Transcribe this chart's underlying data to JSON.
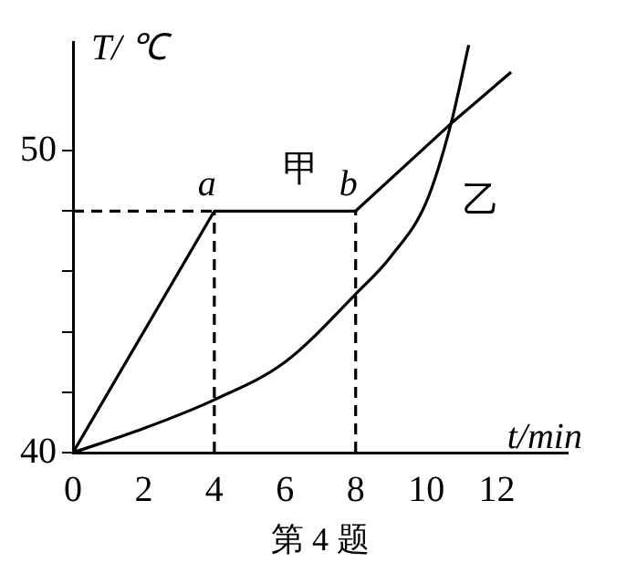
{
  "chart_data": {
    "type": "line",
    "xlabel": "t/min",
    "ylabel": "T/ ℃",
    "xlim": [
      0,
      14
    ],
    "ylim": [
      40,
      53.6
    ],
    "xticks": [
      0,
      2,
      4,
      6,
      8,
      10,
      12
    ],
    "yticks": [
      40,
      {
        "value": 42,
        "label": null
      },
      {
        "value": 44,
        "label": null
      },
      {
        "value": 46,
        "label": null
      },
      {
        "value": 48,
        "label": null
      },
      50
    ],
    "series": [
      {
        "name": "甲",
        "color": "#000000",
        "x": [
          0,
          4,
          8,
          10.7,
          12.4
        ],
        "values": [
          40,
          48,
          48,
          50.9,
          52.6
        ]
      },
      {
        "name": "乙",
        "color": "#000000",
        "x": [
          0,
          2,
          4,
          6,
          8,
          9,
          10,
          10.7,
          11.2
        ],
        "values": [
          40,
          40.8,
          41.75,
          43,
          45.25,
          46.5,
          48.3,
          50.9,
          53.5
        ]
      },
      {
        "color": "#000000",
        "line_style": "dashed",
        "x": [
          0,
          4
        ],
        "values": [
          48,
          48
        ]
      },
      {
        "color": "#000000",
        "line_style": "dashed",
        "x": [
          4,
          4
        ],
        "values": [
          40,
          48
        ]
      },
      {
        "color": "#000000",
        "line_style": "dashed",
        "x": [
          8,
          8
        ],
        "values": [
          40,
          48
        ]
      }
    ],
    "annotations": [
      {
        "text": "a",
        "x": 4,
        "y": 48
      },
      {
        "text": "b",
        "x": 8,
        "y": 48
      },
      "第 4 题"
    ],
    "grid": false,
    "legend": false,
    "marker": "none",
    "line_style": "solid"
  }
}
